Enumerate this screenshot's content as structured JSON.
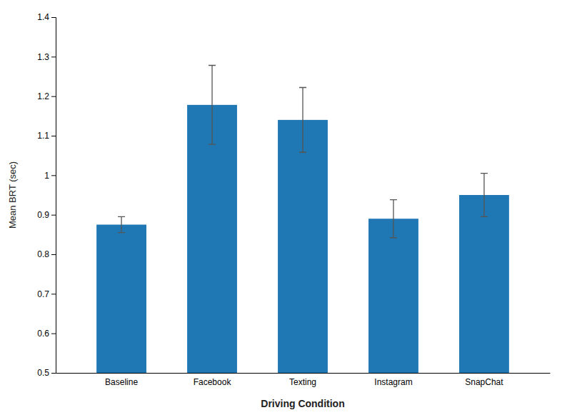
{
  "chart_data": {
    "type": "bar",
    "categories": [
      "Baseline",
      "Facebook",
      "Texting",
      "Instagram",
      "SnapChat"
    ],
    "values": [
      0.875,
      1.178,
      1.14,
      0.89,
      0.95
    ],
    "errors": [
      0.02,
      0.1,
      0.082,
      0.048,
      0.055
    ],
    "xlabel": "Driving Condition",
    "ylabel": "Mean BRT (sec)",
    "ylim": [
      0.5,
      1.4
    ],
    "yticks": [
      0.5,
      0.6,
      0.7,
      0.8,
      0.9,
      1,
      1.1,
      1.2,
      1.3,
      1.4
    ],
    "grid": false
  }
}
